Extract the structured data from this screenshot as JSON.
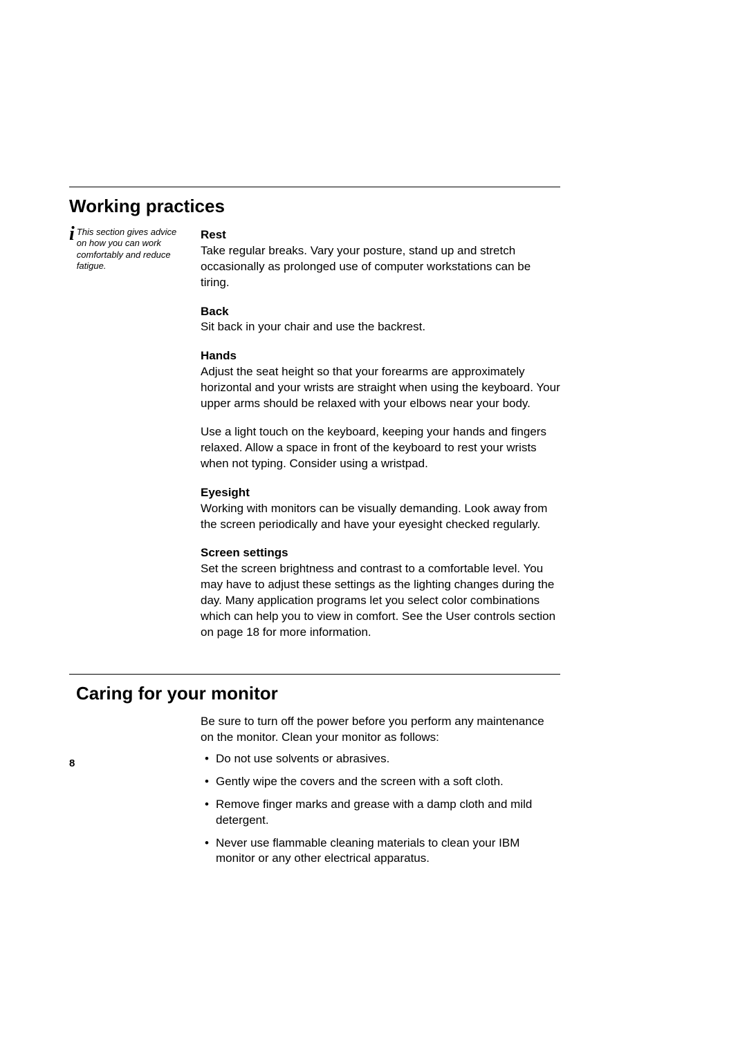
{
  "section1": {
    "title": "Working practices",
    "sidenote": "This section gives advice on how you can work comfortably and reduce fatigue.",
    "blocks": {
      "rest": {
        "title": "Rest",
        "body": "Take regular breaks. Vary your posture, stand up and stretch occasionally as prolonged use of computer workstations can be tiring."
      },
      "back": {
        "title": "Back",
        "body": "Sit back in your chair and use the backrest."
      },
      "hands": {
        "title": "Hands",
        "body1": "Adjust the seat height so that your forearms are approximately horizontal and your wrists are straight when using the keyboard. Your upper arms should be relaxed with your elbows near your body.",
        "body2": "Use a light touch on the keyboard, keeping your hands and fingers relaxed. Allow a space in front of the keyboard to rest your wrists when not typing. Consider using a wristpad."
      },
      "eyesight": {
        "title": "Eyesight",
        "body": "Working with monitors can be visually demanding. Look away from the screen periodically and have your eyesight checked regularly."
      },
      "screen": {
        "title": "Screen settings",
        "body": "Set the screen brightness and contrast to a comfortable level. You may have to adjust these settings as the lighting changes during the day. Many application programs let you select color combinations which can help you to view in comfort. See the User controls section on page 18 for more information."
      }
    }
  },
  "section2": {
    "title": "Caring for your monitor",
    "intro": "Be sure to turn off the power before you perform any maintenance on the monitor. Clean your monitor as follows:",
    "bullets": [
      "Do not use solvents or abrasives.",
      "Gently wipe the covers and the screen with a soft cloth.",
      "Remove finger marks and grease with a damp cloth and mild detergent.",
      "Never use flammable cleaning materials to clean your IBM monitor or any other electrical apparatus."
    ]
  },
  "page_number": "8"
}
